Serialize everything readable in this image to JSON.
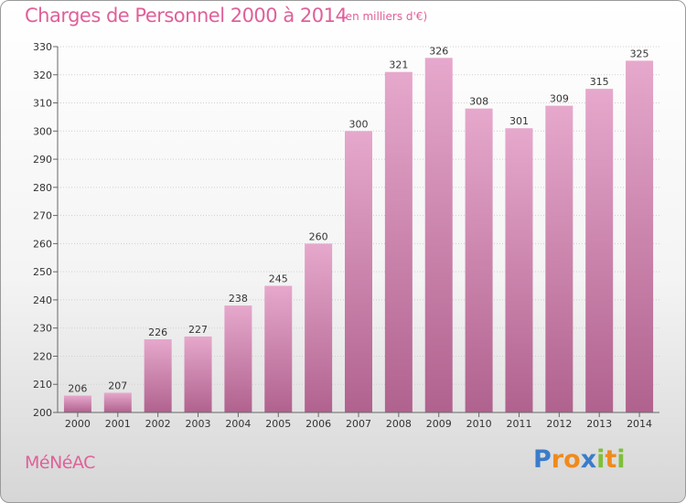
{
  "header": {
    "title": "Charges de Personnel 2000 à 2014",
    "subtitle": "(en milliers d'€)"
  },
  "footer": {
    "commune": "MéNéAC",
    "logo": {
      "text": "Proxiti",
      "letters": [
        {
          "char": "P",
          "color": "#3a7cc9"
        },
        {
          "char": "r",
          "color": "#f08a1c"
        },
        {
          "char": "o",
          "color": "#f08a1c"
        },
        {
          "char": "x",
          "color": "#3a7cc9"
        },
        {
          "char": "i",
          "color": "#7fbf3a"
        },
        {
          "char": "t",
          "color": "#f08a1c"
        },
        {
          "char": "i",
          "color": "#7fbf3a"
        }
      ]
    }
  },
  "colors": {
    "accent": "#e0609a",
    "bar_top": "#e6a8cc",
    "bar_bottom": "#b0628e",
    "axis": "#666666",
    "grid": "#d0d0d0"
  },
  "chart_data": {
    "type": "bar",
    "title": "Charges de Personnel 2000 à 2014",
    "subtitle": "(en milliers d'€)",
    "categories": [
      "2000",
      "2001",
      "2002",
      "2003",
      "2004",
      "2005",
      "2006",
      "2007",
      "2008",
      "2009",
      "2010",
      "2011",
      "2012",
      "2013",
      "2014"
    ],
    "values": [
      206,
      207,
      226,
      227,
      238,
      245,
      260,
      300,
      321,
      326,
      308,
      301,
      309,
      315,
      325
    ],
    "ylim": [
      200,
      330
    ],
    "yticks": [
      200,
      210,
      220,
      230,
      240,
      250,
      260,
      270,
      280,
      290,
      300,
      310,
      320,
      330
    ],
    "grid": true,
    "xlabel": "",
    "ylabel": ""
  }
}
